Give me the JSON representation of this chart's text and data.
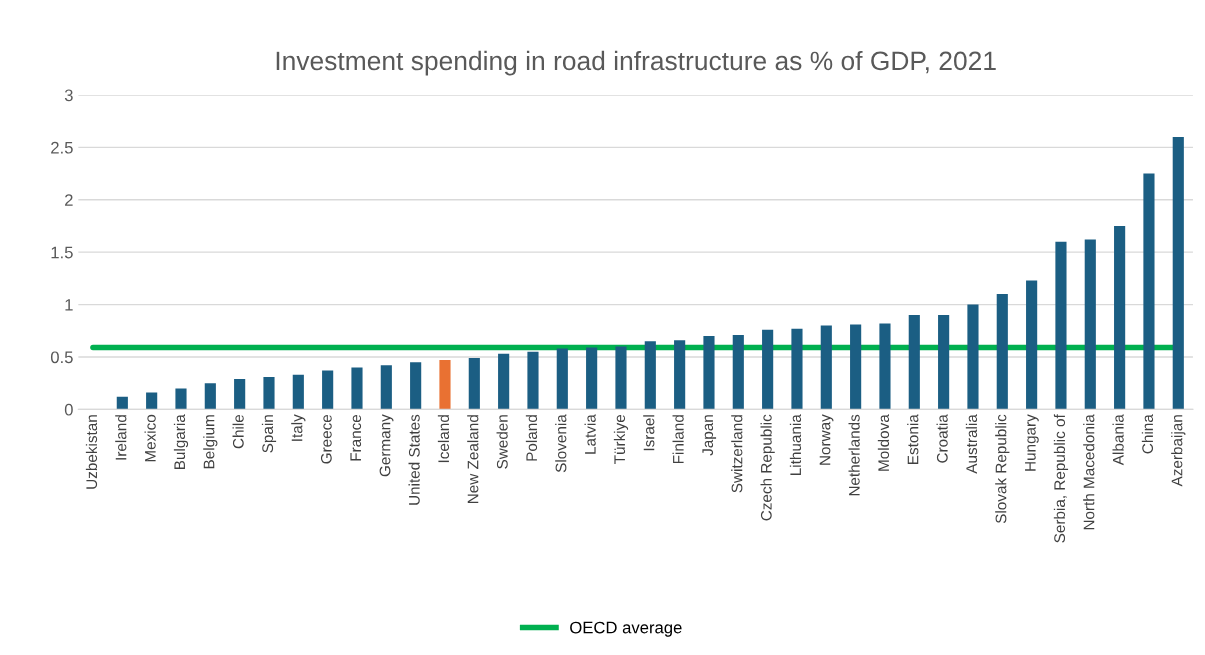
{
  "chart_data": {
    "type": "bar",
    "title": "Investment spending in road infrastructure as % of GDP, 2021",
    "categories": [
      "Uzbekistan",
      "Ireland",
      "Mexico",
      "Bulgaria",
      "Belgium",
      "Chile",
      "Spain",
      "Italy",
      "Greece",
      "France",
      "Germany",
      "United States",
      "Iceland",
      "New Zealand",
      "Sweden",
      "Poland",
      "Slovenia",
      "Latvia",
      "Türkiye",
      "Israel",
      "Finland",
      "Japan",
      "Switzerland",
      "Czech Republic",
      "Lithuania",
      "Norway",
      "Netherlands",
      "Moldova",
      "Estonia",
      "Croatia",
      "Australia",
      "Slovak Republic",
      "Hungary",
      "Serbia, Republic of",
      "North Macedonia",
      "Albania",
      "China",
      "Azerbaijan"
    ],
    "values": [
      0,
      0.12,
      0.16,
      0.2,
      0.25,
      0.29,
      0.31,
      0.33,
      0.37,
      0.4,
      0.42,
      0.45,
      0.47,
      0.49,
      0.53,
      0.55,
      0.58,
      0.59,
      0.6,
      0.65,
      0.66,
      0.7,
      0.71,
      0.76,
      0.77,
      0.8,
      0.81,
      0.82,
      0.9,
      0.9,
      1.0,
      1.1,
      1.23,
      1.6,
      1.62,
      1.75,
      2.25,
      2.6
    ],
    "colors": [
      "#1b5e83",
      "#1b5e83",
      "#1b5e83",
      "#1b5e83",
      "#1b5e83",
      "#1b5e83",
      "#1b5e83",
      "#1b5e83",
      "#1b5e83",
      "#1b5e83",
      "#1b5e83",
      "#1b5e83",
      "#e97132",
      "#1b5e83",
      "#1b5e83",
      "#1b5e83",
      "#1b5e83",
      "#1b5e83",
      "#1b5e83",
      "#1b5e83",
      "#1b5e83",
      "#1b5e83",
      "#1b5e83",
      "#1b5e83",
      "#1b5e83",
      "#1b5e83",
      "#1b5e83",
      "#1b5e83",
      "#1b5e83",
      "#1b5e83",
      "#1b5e83",
      "#1b5e83",
      "#1b5e83",
      "#1b5e83",
      "#1b5e83",
      "#1b5e83",
      "#1b5e83",
      "#1b5e83"
    ],
    "ylim": [
      0,
      3
    ],
    "yticks": [
      0,
      0.5,
      1,
      1.5,
      2,
      2.5,
      3
    ],
    "grid": "y",
    "legend": "bottom",
    "ref_lines": [
      {
        "axis": "y",
        "value": 0.59,
        "label": "OECD average",
        "color": "#00b050"
      }
    ]
  }
}
